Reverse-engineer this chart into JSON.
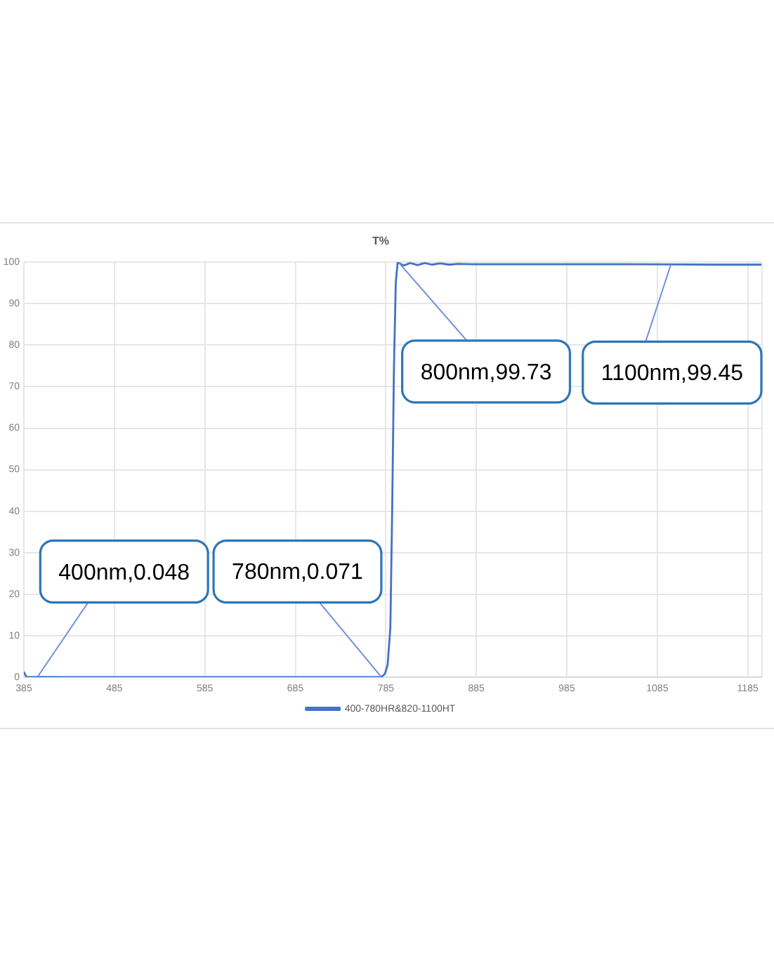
{
  "chart_data": {
    "type": "line",
    "title": "T%",
    "series": [
      {
        "name": "400-780HR&820-1100HT",
        "color": "#4472c4",
        "x": [
          385,
          388,
          400,
          430,
          460,
          490,
          520,
          550,
          580,
          610,
          640,
          670,
          700,
          730,
          760,
          780,
          784,
          787,
          790,
          792,
          794,
          796,
          798,
          800,
          805,
          812,
          820,
          828,
          836,
          845,
          855,
          865,
          880,
          900,
          950,
          1000,
          1050,
          1100,
          1150,
          1200
        ],
        "values": [
          1.2,
          0,
          0.048,
          0,
          0,
          0,
          0,
          0,
          0,
          0,
          0,
          0,
          0,
          0,
          0,
          0.071,
          0.8,
          3,
          12,
          40,
          75,
          95,
          99.9,
          99.73,
          99.2,
          99.8,
          99.3,
          99.8,
          99.4,
          99.7,
          99.4,
          99.6,
          99.5,
          99.5,
          99.5,
          99.5,
          99.5,
          99.45,
          99.4,
          99.4
        ]
      }
    ],
    "xlim": [
      385,
      1200
    ],
    "xticks": [
      385,
      485,
      585,
      685,
      785,
      885,
      985,
      1085,
      1185
    ],
    "ylim": [
      0,
      100
    ],
    "yticks": [
      0,
      10,
      20,
      30,
      40,
      50,
      60,
      70,
      80,
      90,
      100
    ],
    "grid": true,
    "legend": "bottom",
    "marker": "none",
    "line_style": "solid",
    "annotations": [
      {
        "text": "400nm,0.048",
        "x": 400,
        "y": 0.048
      },
      {
        "text": "780nm,0.071",
        "x": 780,
        "y": 0.071
      },
      {
        "text": "800nm,99.73",
        "x": 800,
        "y": 99.73
      },
      {
        "text": "1100nm,99.45",
        "x": 1100,
        "y": 99.45
      }
    ]
  }
}
